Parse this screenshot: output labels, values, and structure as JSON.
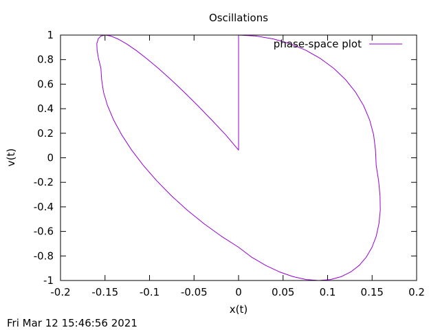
{
  "chart_data": {
    "type": "line",
    "title": "Oscillations",
    "xlabel": "x(t)",
    "ylabel": "v(t)",
    "xlim": [
      -0.2,
      0.2
    ],
    "ylim": [
      -1,
      1
    ],
    "xticks": [
      -0.2,
      -0.15,
      -0.1,
      -0.05,
      0,
      0.05,
      0.1,
      0.15,
      0.2
    ],
    "xtick_labels": [
      "-0.2",
      "-0.15",
      "-0.1",
      "-0.05",
      "0",
      "0.05",
      "0.1",
      "0.15",
      "0.2"
    ],
    "yticks": [
      -1,
      -0.8,
      -0.6,
      -0.4,
      -0.2,
      0,
      0.2,
      0.4,
      0.6,
      0.8,
      1
    ],
    "ytick_labels": [
      "-1",
      "-0.8",
      "-0.6",
      "-0.4",
      "-0.2",
      "0",
      "0.2",
      "0.4",
      "0.6",
      "0.8",
      "1"
    ],
    "grid": false,
    "legend_position": "top-right",
    "series": [
      {
        "name": "phase-space plot",
        "color": "#9400d3",
        "x": [
          0.0,
          0.0197,
          0.0391,
          0.0578,
          0.0755,
          0.0919,
          0.1069,
          0.1201,
          0.1313,
          0.1404,
          0.1472,
          0.1517,
          0.1538,
          0.1546,
          0.1573,
          0.1589,
          0.1592,
          0.1577,
          0.1547,
          0.1499,
          0.1435,
          0.1356,
          0.1261,
          0.1153,
          0.1033,
          0.0901,
          0.076,
          0.0612,
          0.0459,
          0.0303,
          0.0145,
          0.0,
          -0.0197,
          -0.0391,
          -0.0578,
          -0.0755,
          -0.0919,
          -0.1069,
          -0.1201,
          -0.1313,
          -0.1404,
          -0.1472,
          -0.1517,
          -0.1538,
          -0.1546,
          -0.1573,
          -0.1589,
          -0.1592,
          -0.1577,
          -0.1547,
          -0.1499,
          -0.1435,
          -0.1356,
          -0.1261,
          -0.1153,
          -0.1033,
          -0.0901,
          -0.076,
          -0.0612,
          -0.0459,
          -0.0303,
          -0.0145,
          0.0
        ],
        "y": [
          1.0,
          0.9921,
          0.9686,
          0.9298,
          0.8763,
          0.809,
          0.729,
          0.6374,
          0.5358,
          0.4258,
          0.309,
          0.1874,
          0.0628,
          -0.0628,
          -0.1874,
          -0.309,
          -0.4258,
          -0.5358,
          -0.6374,
          -0.729,
          -0.809,
          -0.8763,
          -0.9298,
          -0.9686,
          -0.9921,
          -1.0,
          -0.9921,
          -0.9686,
          -0.9298,
          -0.8763,
          -0.809,
          -0.729,
          -0.6374,
          -0.5358,
          -0.4258,
          -0.309,
          -0.1874,
          -0.0628,
          0.0628,
          0.1874,
          0.309,
          0.4258,
          0.5358,
          0.6374,
          0.729,
          0.809,
          0.8763,
          0.9298,
          0.9686,
          0.9921,
          1.0,
          0.9921,
          0.9686,
          0.9298,
          0.8763,
          0.809,
          0.729,
          0.6374,
          0.5358,
          0.4258,
          0.309,
          0.1874,
          0.0628
        ]
      }
    ]
  },
  "footer": {
    "timestamp": "Fri Mar 12 15:46:56 2021"
  }
}
